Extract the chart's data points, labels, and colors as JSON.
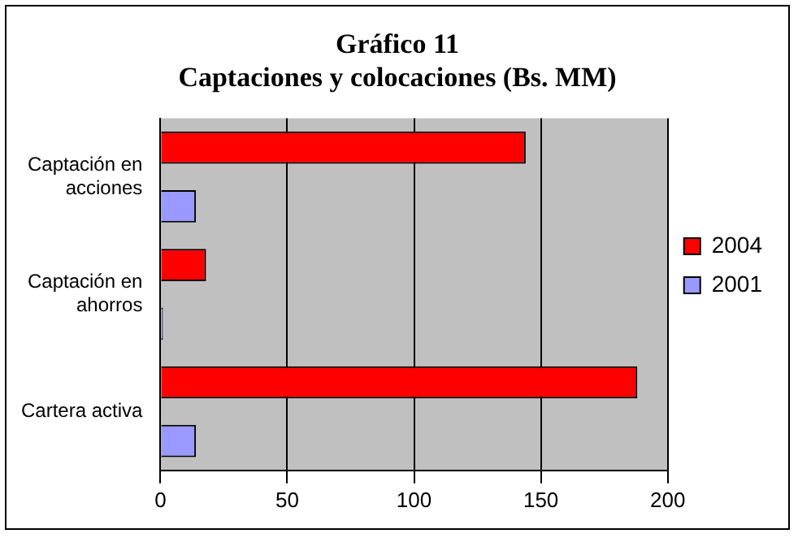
{
  "chart_data": {
    "type": "bar",
    "orientation": "horizontal",
    "title": "Gráfico 11\nCaptaciones y colocaciones (Bs. MM)",
    "categories": [
      "Captación en acciones",
      "Captación en ahorros",
      "Cartera activa"
    ],
    "series": [
      {
        "name": "2004",
        "color": "#ff0000",
        "values": [
          144,
          18,
          188
        ]
      },
      {
        "name": "2001",
        "color": "#9999ff",
        "values": [
          14,
          1,
          14
        ]
      }
    ],
    "xlim": [
      0,
      200
    ],
    "xticks": [
      0,
      50,
      100,
      150,
      200
    ],
    "grid": "x",
    "legend": "right"
  }
}
